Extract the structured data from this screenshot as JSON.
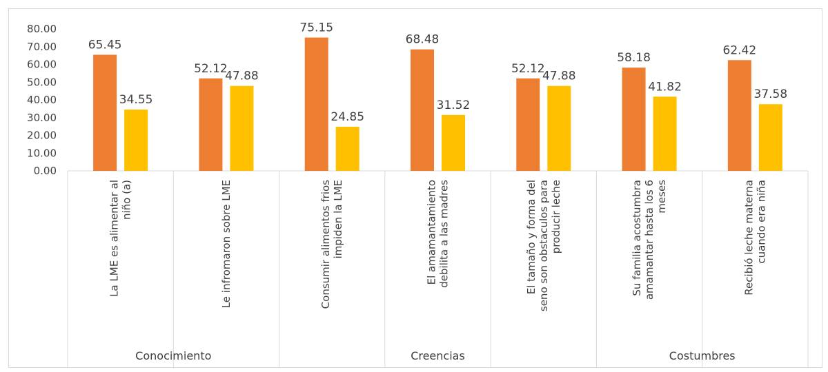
{
  "chart_data": {
    "type": "bar",
    "title": "",
    "xlabel": "",
    "ylabel": "",
    "ylim": [
      0,
      80
    ],
    "yticks": [
      "0.00",
      "10.00",
      "20.00",
      "30.00",
      "40.00",
      "50.00",
      "60.00",
      "70.00",
      "80.00"
    ],
    "grid": false,
    "legend": "none",
    "colors": [
      "#ED7D31",
      "#FFC000"
    ],
    "groups": [
      {
        "label": "Conocimiento",
        "size": 2
      },
      {
        "label": "Creencias",
        "size": 3
      },
      {
        "label": "Costumbres",
        "size": 2
      }
    ],
    "categories": [
      [
        "La LME es alimentar al",
        "niño (a)"
      ],
      [
        "Le infromaron sobre LME"
      ],
      [
        "Consumir alimentos frios",
        "impiden la LME"
      ],
      [
        "El amamantamiento",
        "debilita a las madres"
      ],
      [
        "El tamaño y forma del",
        "seno son obstaculos para",
        "producir leche"
      ],
      [
        "Su familia acostumbra",
        "amamantar hasta los 6",
        "meses"
      ],
      [
        "Recibió leche materna",
        "cuando era niña"
      ]
    ],
    "series": [
      {
        "values": [
          65.45,
          52.12,
          75.15,
          68.48,
          52.12,
          58.18,
          62.42
        ],
        "labels": [
          "65.45",
          "52.12",
          "75.15",
          "68.48",
          "52.12",
          "58.18",
          "62.42"
        ]
      },
      {
        "values": [
          34.55,
          47.88,
          24.85,
          31.52,
          47.88,
          41.82,
          37.58
        ],
        "labels": [
          "34.55",
          "47.88",
          "24.85",
          "31.52",
          "47.88",
          "41.82",
          "37.58"
        ]
      }
    ]
  }
}
